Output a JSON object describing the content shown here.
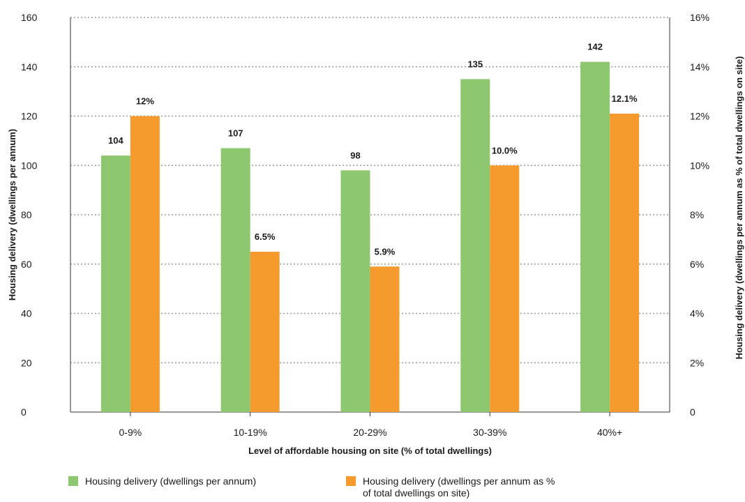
{
  "chart_data": {
    "type": "bar",
    "categories": [
      "0-9%",
      "10-19%",
      "20-29%",
      "30-39%",
      "40%+"
    ],
    "series": [
      {
        "name": "Housing delivery (dwellings per annum)",
        "axis": "left",
        "color": "#8dc870",
        "values": [
          104,
          107,
          98,
          135,
          142
        ],
        "labels": [
          "104",
          "107",
          "98",
          "135",
          "142"
        ]
      },
      {
        "name": "Housing delivery (dwellings per annum as % of total dwellings on site)",
        "axis": "right",
        "color": "#f59a2c",
        "values": [
          12.0,
          6.5,
          5.9,
          10.0,
          12.1
        ],
        "labels": [
          "12%",
          "6.5%",
          "5.9%",
          "10.0%",
          "12.1%"
        ]
      }
    ],
    "xlabel": "Level of affordable housing on site (% of total dwellings)",
    "ylabel": "Housing delivery (dwellings per annum)",
    "y2label": "Housing delivery (dwellings per annum as % of total dwellings on site)",
    "ylim": [
      0,
      160
    ],
    "y2lim": [
      0,
      16
    ],
    "yticks": [
      "0",
      "20",
      "40",
      "60",
      "80",
      "100",
      "120",
      "140",
      "160"
    ],
    "y2ticks": [
      "0",
      "2%",
      "4%",
      "6%",
      "8%",
      "10%",
      "12%",
      "14%",
      "16%"
    ],
    "grid": true,
    "legend_position": "bottom"
  },
  "legend": {
    "item1": "Housing delivery (dwellings per annum)",
    "item2_line1": "Housing delivery (dwellings per annum as %",
    "item2_line2": "of total dwellings on site)"
  }
}
